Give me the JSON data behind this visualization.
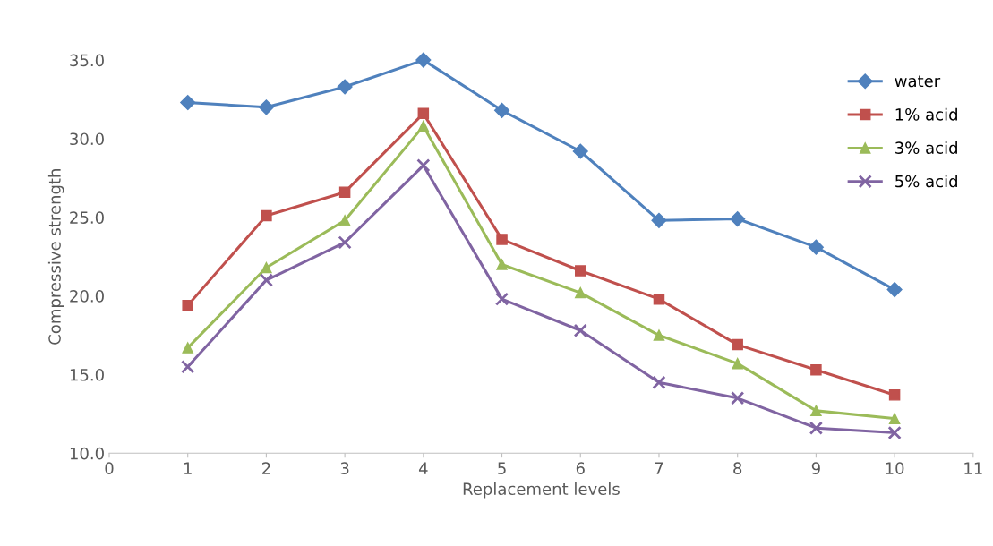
{
  "chart_data": {
    "type": "line",
    "xlabel": "Replacement levels",
    "ylabel": "Compressive strength",
    "x": [
      1,
      2,
      3,
      4,
      5,
      6,
      7,
      8,
      9,
      10
    ],
    "series": [
      {
        "name": "water",
        "color": "#4f81bd",
        "marker": "diamond",
        "values": [
          32.3,
          32.0,
          33.3,
          35.0,
          31.8,
          29.2,
          24.8,
          24.9,
          23.1,
          20.4
        ]
      },
      {
        "name": "1% acid",
        "color": "#c0504d",
        "marker": "square",
        "values": [
          19.4,
          25.1,
          26.6,
          31.6,
          23.6,
          21.6,
          19.8,
          16.9,
          15.3,
          13.7
        ]
      },
      {
        "name": "3% acid",
        "color": "#9bbb59",
        "marker": "triangle",
        "values": [
          16.7,
          21.8,
          24.8,
          30.8,
          22.0,
          20.2,
          17.5,
          15.7,
          12.7,
          12.2
        ]
      },
      {
        "name": "5% acid",
        "color": "#8064a2",
        "marker": "cross",
        "values": [
          15.5,
          21.0,
          23.4,
          28.3,
          19.8,
          17.8,
          14.5,
          13.5,
          11.6,
          11.3
        ]
      }
    ],
    "xlim": [
      0,
      11
    ],
    "xticks": [
      0,
      1,
      2,
      3,
      4,
      5,
      6,
      7,
      8,
      9,
      10,
      11
    ],
    "ylim": [
      10,
      35
    ],
    "yticks": [
      {
        "value": 10,
        "label": "10.0"
      },
      {
        "value": 15,
        "label": "15.0"
      },
      {
        "value": 20,
        "label": "20.0"
      },
      {
        "value": 25,
        "label": "25.0"
      },
      {
        "value": 30,
        "label": "30.0"
      },
      {
        "value": 35,
        "label": "35.0"
      }
    ],
    "grid": false,
    "legend": "top right",
    "line_style": "solid"
  }
}
